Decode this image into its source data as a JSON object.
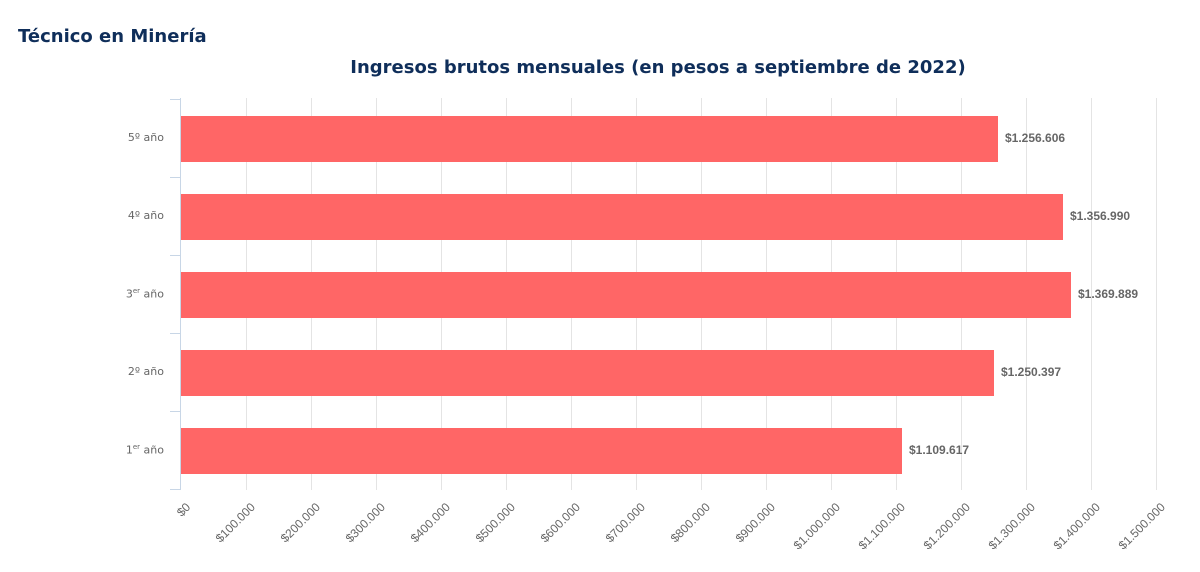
{
  "page": {
    "title": "Técnico en Minería"
  },
  "chart_data": {
    "type": "bar",
    "orientation": "horizontal",
    "title": "Ingresos brutos mensuales (en pesos a septiembre de 2022)",
    "xlabel": "",
    "ylabel": "",
    "categories": [
      "5º año",
      "4º año",
      "3er año",
      "2º año",
      "1er año"
    ],
    "category_parts": [
      {
        "base": "5º",
        "sup": "",
        "rest": " año"
      },
      {
        "base": "4º",
        "sup": "",
        "rest": " año"
      },
      {
        "base": "3",
        "sup": "er",
        "rest": " año"
      },
      {
        "base": "2º",
        "sup": "",
        "rest": " año"
      },
      {
        "base": "1",
        "sup": "er",
        "rest": " año"
      }
    ],
    "values": [
      1256606,
      1356990,
      1369889,
      1250397,
      1109617
    ],
    "value_labels": [
      "$1.256.606",
      "$1.356.990",
      "$1.369.889",
      "$1.250.397",
      "$1.109.617"
    ],
    "xlim": [
      0,
      1500000
    ],
    "x_ticks": [
      0,
      100000,
      200000,
      300000,
      400000,
      500000,
      600000,
      700000,
      800000,
      900000,
      1000000,
      1100000,
      1200000,
      1300000,
      1400000,
      1500000
    ],
    "x_tick_labels": [
      "$0",
      "$100.000",
      "$200.000",
      "$300.000",
      "$400.000",
      "$500.000",
      "$600.000",
      "$700.000",
      "$800.000",
      "$900.000",
      "$1.000.000",
      "$1.100.000",
      "$1.200.000",
      "$1.300.000",
      "$1.400.000",
      "$1.500.000"
    ],
    "grid": true,
    "legend": null,
    "colors": {
      "bar": "#ff6666",
      "title": "#0f2e5a",
      "label": "#666666",
      "grid": "#e4e4e4",
      "axis": "#c8d6e6"
    }
  }
}
